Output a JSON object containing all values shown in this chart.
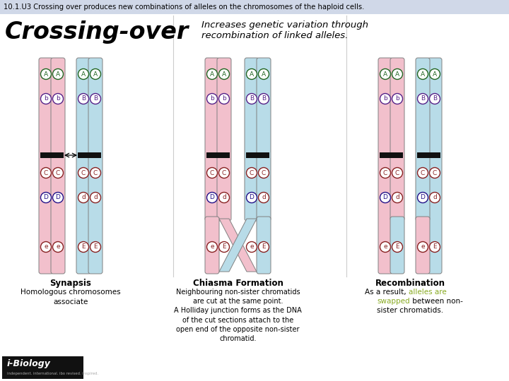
{
  "title_bar_text": "10.1.U3 Crossing over produces new combinations of alleles on the chromosomes of the haploid cells.",
  "title_bar_bg": "#d0d8e8",
  "main_title": "Crossing-over",
  "subtitle": "Increases genetic variation through\nrecombination of linked alleles.",
  "bg_color": "#ffffff",
  "section1_label": "Synapsis",
  "section1_desc": "Homologous chromosomes\nassociate",
  "section2_label": "Chiasma Formation",
  "section2_desc": "Neighbouring non-sister chromatids\nare cut at the same point.\nA Holliday junction forms as the DNA\nof the cut sections attach to the\nopen end of the opposite non-sister\nchromatid.",
  "section3_label": "Recombination",
  "section3_desc1": "As a result, ",
  "section3_desc2": "alleles are\nswapped",
  "section3_desc3": " between non-\nsister chromatids.",
  "section3_desc2_color": "#88aa22",
  "pink_color": "#f2c0cc",
  "blue_color": "#b8dce8",
  "centromere_color": "#111111",
  "logo_bg": "#111111",
  "logo_text": "i-Biology",
  "logo_subtext": "independent. international. ibo revised. inspired.",
  "col_green": "#226622",
  "col_darkblue": "#221188",
  "col_darkred": "#882222",
  "col_purple": "#552288"
}
